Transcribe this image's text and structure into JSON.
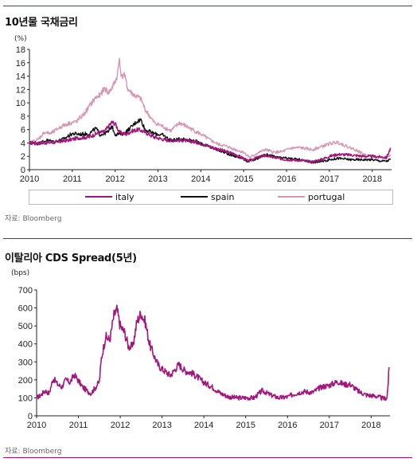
{
  "chart_data": [
    {
      "type": "line",
      "title": "10년물 국채금리",
      "ylabel": "(%)",
      "xlim": [
        2010,
        2018.45
      ],
      "ylim": [
        0,
        18
      ],
      "yticks": [
        0,
        2,
        4,
        6,
        8,
        10,
        12,
        14,
        16,
        18
      ],
      "xticks": [
        "2010",
        "2011",
        "2012",
        "2013",
        "2014",
        "2015",
        "2016",
        "2017",
        "2018"
      ],
      "legend_position": "bottom",
      "source": "자료: Bloomberg",
      "series": [
        {
          "name": "italy",
          "color": "#a3177c",
          "points": [
            [
              2010,
              4.0
            ],
            [
              2010.3,
              4.0
            ],
            [
              2010.6,
              4.1
            ],
            [
              2010.9,
              4.4
            ],
            [
              2011.1,
              4.7
            ],
            [
              2011.4,
              4.9
            ],
            [
              2011.6,
              5.5
            ],
            [
              2011.75,
              5.7
            ],
            [
              2011.85,
              6.5
            ],
            [
              2011.92,
              7.1
            ],
            [
              2012.0,
              6.9
            ],
            [
              2012.1,
              5.6
            ],
            [
              2012.25,
              5.3
            ],
            [
              2012.4,
              5.8
            ],
            [
              2012.55,
              6.0
            ],
            [
              2012.7,
              5.6
            ],
            [
              2012.9,
              4.9
            ],
            [
              2013.2,
              4.4
            ],
            [
              2013.6,
              4.4
            ],
            [
              2013.9,
              4.1
            ],
            [
              2014.2,
              3.5
            ],
            [
              2014.5,
              2.9
            ],
            [
              2014.8,
              2.3
            ],
            [
              2015.0,
              1.7
            ],
            [
              2015.1,
              1.3
            ],
            [
              2015.3,
              1.8
            ],
            [
              2015.5,
              2.1
            ],
            [
              2015.8,
              1.7
            ],
            [
              2016.0,
              1.5
            ],
            [
              2016.3,
              1.4
            ],
            [
              2016.6,
              1.2
            ],
            [
              2016.8,
              1.5
            ],
            [
              2017.0,
              2.0
            ],
            [
              2017.2,
              2.3
            ],
            [
              2017.5,
              2.2
            ],
            [
              2017.8,
              2.0
            ],
            [
              2018.0,
              2.0
            ],
            [
              2018.2,
              1.9
            ],
            [
              2018.33,
              1.8
            ],
            [
              2018.4,
              2.8
            ],
            [
              2018.43,
              3.1
            ]
          ]
        },
        {
          "name": "spain",
          "color": "#111111",
          "points": [
            [
              2010,
              4.0
            ],
            [
              2010.2,
              3.9
            ],
            [
              2010.4,
              4.4
            ],
            [
              2010.6,
              4.2
            ],
            [
              2010.8,
              4.6
            ],
            [
              2011.0,
              5.4
            ],
            [
              2011.2,
              5.3
            ],
            [
              2011.4,
              5.4
            ],
            [
              2011.55,
              6.2
            ],
            [
              2011.65,
              5.2
            ],
            [
              2011.85,
              5.7
            ],
            [
              2011.92,
              6.6
            ],
            [
              2012.0,
              5.3
            ],
            [
              2012.2,
              5.4
            ],
            [
              2012.35,
              6.2
            ],
            [
              2012.5,
              7.2
            ],
            [
              2012.6,
              7.5
            ],
            [
              2012.7,
              6.0
            ],
            [
              2012.9,
              5.4
            ],
            [
              2013.1,
              5.2
            ],
            [
              2013.3,
              4.4
            ],
            [
              2013.6,
              4.6
            ],
            [
              2013.9,
              4.2
            ],
            [
              2014.2,
              3.4
            ],
            [
              2014.5,
              2.7
            ],
            [
              2014.8,
              2.0
            ],
            [
              2015.0,
              1.6
            ],
            [
              2015.1,
              1.2
            ],
            [
              2015.3,
              1.6
            ],
            [
              2015.5,
              2.3
            ],
            [
              2015.8,
              1.8
            ],
            [
              2016.0,
              1.7
            ],
            [
              2016.3,
              1.5
            ],
            [
              2016.6,
              1.1
            ],
            [
              2016.8,
              1.2
            ],
            [
              2017.0,
              1.5
            ],
            [
              2017.2,
              1.7
            ],
            [
              2017.5,
              1.5
            ],
            [
              2017.8,
              1.5
            ],
            [
              2018.0,
              1.5
            ],
            [
              2018.2,
              1.3
            ],
            [
              2018.35,
              1.3
            ],
            [
              2018.43,
              1.6
            ]
          ]
        },
        {
          "name": "portugal",
          "color": "#d696b5",
          "points": [
            [
              2010,
              4.0
            ],
            [
              2010.2,
              4.5
            ],
            [
              2010.35,
              5.6
            ],
            [
              2010.5,
              5.4
            ],
            [
              2010.7,
              6.3
            ],
            [
              2010.9,
              6.9
            ],
            [
              2011.1,
              7.2
            ],
            [
              2011.3,
              8.5
            ],
            [
              2011.45,
              10.0
            ],
            [
              2011.55,
              10.8
            ],
            [
              2011.65,
              11.1
            ],
            [
              2011.75,
              12.2
            ],
            [
              2011.85,
              11.5
            ],
            [
              2011.95,
              12.5
            ],
            [
              2012.05,
              14.0
            ],
            [
              2012.1,
              16.7
            ],
            [
              2012.15,
              13.6
            ],
            [
              2012.2,
              14.5
            ],
            [
              2012.3,
              12.0
            ],
            [
              2012.45,
              11.1
            ],
            [
              2012.6,
              10.6
            ],
            [
              2012.7,
              9.0
            ],
            [
              2012.9,
              7.1
            ],
            [
              2013.1,
              6.5
            ],
            [
              2013.3,
              5.8
            ],
            [
              2013.5,
              7.0
            ],
            [
              2013.6,
              6.7
            ],
            [
              2013.8,
              6.0
            ],
            [
              2014.0,
              5.3
            ],
            [
              2014.2,
              4.5
            ],
            [
              2014.4,
              3.8
            ],
            [
              2014.6,
              3.5
            ],
            [
              2014.8,
              3.0
            ],
            [
              2015.0,
              2.6
            ],
            [
              2015.15,
              1.8
            ],
            [
              2015.3,
              2.4
            ],
            [
              2015.5,
              3.0
            ],
            [
              2015.7,
              2.6
            ],
            [
              2015.9,
              2.7
            ],
            [
              2016.1,
              3.2
            ],
            [
              2016.3,
              3.3
            ],
            [
              2016.6,
              3.0
            ],
            [
              2016.8,
              3.4
            ],
            [
              2017.0,
              3.9
            ],
            [
              2017.2,
              4.1
            ],
            [
              2017.4,
              3.5
            ],
            [
              2017.6,
              3.0
            ],
            [
              2017.8,
              2.3
            ],
            [
              2018.0,
              1.9
            ],
            [
              2018.2,
              1.8
            ],
            [
              2018.35,
              1.9
            ],
            [
              2018.43,
              2.2
            ]
          ]
        }
      ]
    },
    {
      "type": "line",
      "title": "이탈리아 CDS Spread(5년)",
      "ylabel": "(bps)",
      "xlim": [
        2010,
        2018.45
      ],
      "ylim": [
        0,
        700
      ],
      "yticks": [
        0,
        100,
        200,
        300,
        400,
        500,
        600,
        700
      ],
      "xticks": [
        "2010",
        "2011",
        "2012",
        "2013",
        "2014",
        "2015",
        "2016",
        "2017",
        "2018"
      ],
      "source": "자료: Bloomberg",
      "series": [
        {
          "name": "italy",
          "color": "#a3177c",
          "points": [
            [
              2010,
              100
            ],
            [
              2010.1,
              115
            ],
            [
              2010.2,
              140
            ],
            [
              2010.3,
              125
            ],
            [
              2010.4,
              210
            ],
            [
              2010.5,
              175
            ],
            [
              2010.6,
              160
            ],
            [
              2010.7,
              200
            ],
            [
              2010.8,
              185
            ],
            [
              2010.9,
              230
            ],
            [
              2011.0,
              195
            ],
            [
              2011.1,
              160
            ],
            [
              2011.2,
              140
            ],
            [
              2011.3,
              125
            ],
            [
              2011.4,
              155
            ],
            [
              2011.5,
              190
            ],
            [
              2011.55,
              320
            ],
            [
              2011.65,
              440
            ],
            [
              2011.75,
              420
            ],
            [
              2011.85,
              560
            ],
            [
              2011.92,
              590
            ],
            [
              2012.0,
              500
            ],
            [
              2012.1,
              465
            ],
            [
              2012.2,
              385
            ],
            [
              2012.3,
              385
            ],
            [
              2012.4,
              525
            ],
            [
              2012.5,
              570
            ],
            [
              2012.6,
              520
            ],
            [
              2012.7,
              400
            ],
            [
              2012.8,
              340
            ],
            [
              2012.9,
              285
            ],
            [
              2013.0,
              260
            ],
            [
              2013.2,
              225
            ],
            [
              2013.4,
              285
            ],
            [
              2013.55,
              250
            ],
            [
              2013.7,
              240
            ],
            [
              2013.85,
              215
            ],
            [
              2014.0,
              185
            ],
            [
              2014.2,
              160
            ],
            [
              2014.4,
              125
            ],
            [
              2014.6,
              105
            ],
            [
              2014.8,
              100
            ],
            [
              2015.0,
              100
            ],
            [
              2015.2,
              100
            ],
            [
              2015.4,
              140
            ],
            [
              2015.6,
              115
            ],
            [
              2015.8,
              100
            ],
            [
              2016.0,
              105
            ],
            [
              2016.2,
              125
            ],
            [
              2016.4,
              135
            ],
            [
              2016.6,
              130
            ],
            [
              2016.8,
              160
            ],
            [
              2017.0,
              170
            ],
            [
              2017.2,
              190
            ],
            [
              2017.35,
              175
            ],
            [
              2017.5,
              175
            ],
            [
              2017.7,
              135
            ],
            [
              2017.9,
              115
            ],
            [
              2018.1,
              110
            ],
            [
              2018.3,
              95
            ],
            [
              2018.38,
              100
            ],
            [
              2018.41,
              190
            ],
            [
              2018.43,
              270
            ]
          ]
        }
      ]
    }
  ]
}
